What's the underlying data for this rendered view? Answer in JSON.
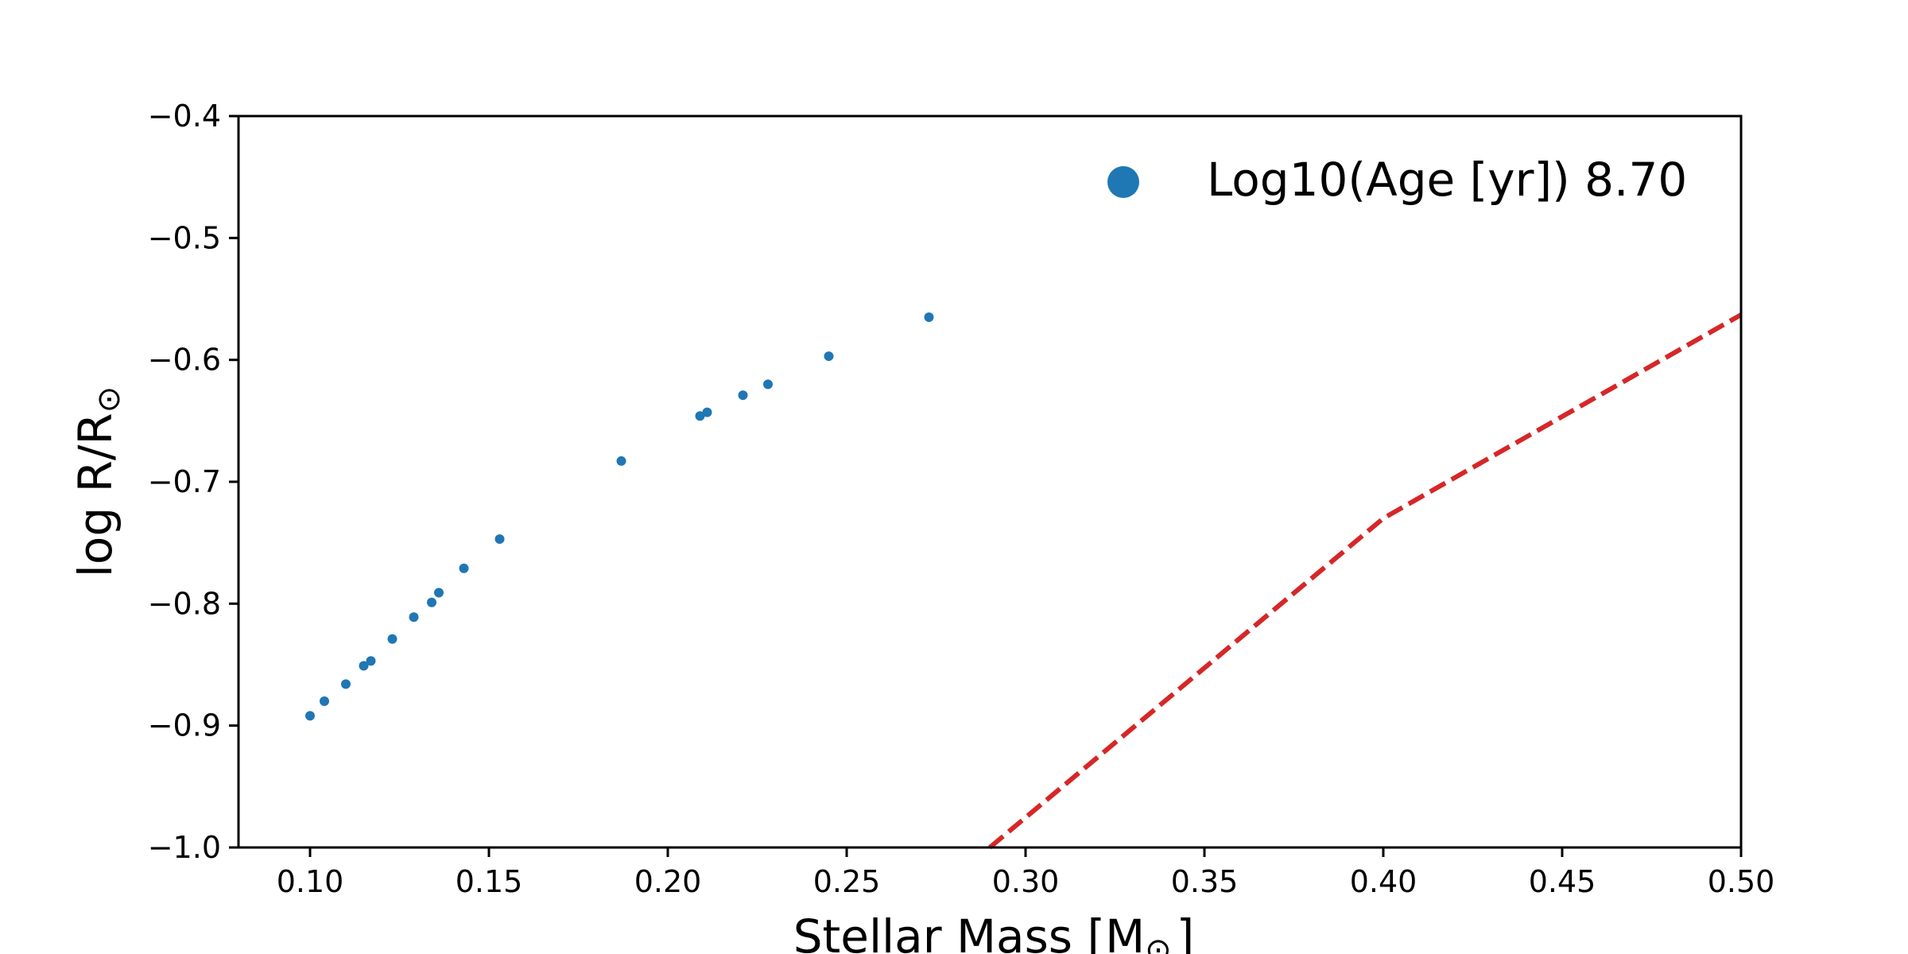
{
  "chart_data": {
    "type": "scatter",
    "xlabel": "Stellar Mass [M",
    "xlabel_sub": "⊙",
    "xlabel_end": "]",
    "ylabel": "log R/R",
    "ylabel_sub": "⊙",
    "xlim": [
      0.08,
      0.5
    ],
    "ylim": [
      -1.0,
      -0.4
    ],
    "xticks": [
      0.1,
      0.15,
      0.2,
      0.25,
      0.3,
      0.35,
      0.4,
      0.45,
      0.5
    ],
    "xtick_labels": [
      "0.10",
      "0.15",
      "0.20",
      "0.25",
      "0.30",
      "0.35",
      "0.40",
      "0.45",
      "0.50"
    ],
    "yticks": [
      -0.4,
      -0.5,
      -0.6,
      -0.7,
      -0.8,
      -0.9,
      -1.0
    ],
    "ytick_labels": [
      "−0.4",
      "−0.5",
      "−0.6",
      "−0.7",
      "−0.8",
      "−0.9",
      "−1.0"
    ],
    "grid": false,
    "legend_position": "top-right",
    "series": [
      {
        "name": "Log10(Age [yr]) 8.70",
        "kind": "scatter",
        "color": "#1f77b4",
        "points": [
          {
            "x": 0.1,
            "y": -0.892
          },
          {
            "x": 0.104,
            "y": -0.88
          },
          {
            "x": 0.11,
            "y": -0.866
          },
          {
            "x": 0.115,
            "y": -0.851
          },
          {
            "x": 0.117,
            "y": -0.847
          },
          {
            "x": 0.123,
            "y": -0.829
          },
          {
            "x": 0.129,
            "y": -0.811
          },
          {
            "x": 0.134,
            "y": -0.799
          },
          {
            "x": 0.136,
            "y": -0.791
          },
          {
            "x": 0.143,
            "y": -0.771
          },
          {
            "x": 0.153,
            "y": -0.747
          },
          {
            "x": 0.187,
            "y": -0.683
          },
          {
            "x": 0.209,
            "y": -0.646
          },
          {
            "x": 0.211,
            "y": -0.643
          },
          {
            "x": 0.221,
            "y": -0.629
          },
          {
            "x": 0.228,
            "y": -0.62
          },
          {
            "x": 0.245,
            "y": -0.597
          },
          {
            "x": 0.273,
            "y": -0.565
          }
        ]
      },
      {
        "kind": "line",
        "style": "dashed",
        "color": "#d62728",
        "points": [
          {
            "x": 0.29,
            "y": -1.0
          },
          {
            "x": 0.4,
            "y": -0.73
          },
          {
            "x": 0.5,
            "y": -0.563
          }
        ]
      }
    ]
  }
}
